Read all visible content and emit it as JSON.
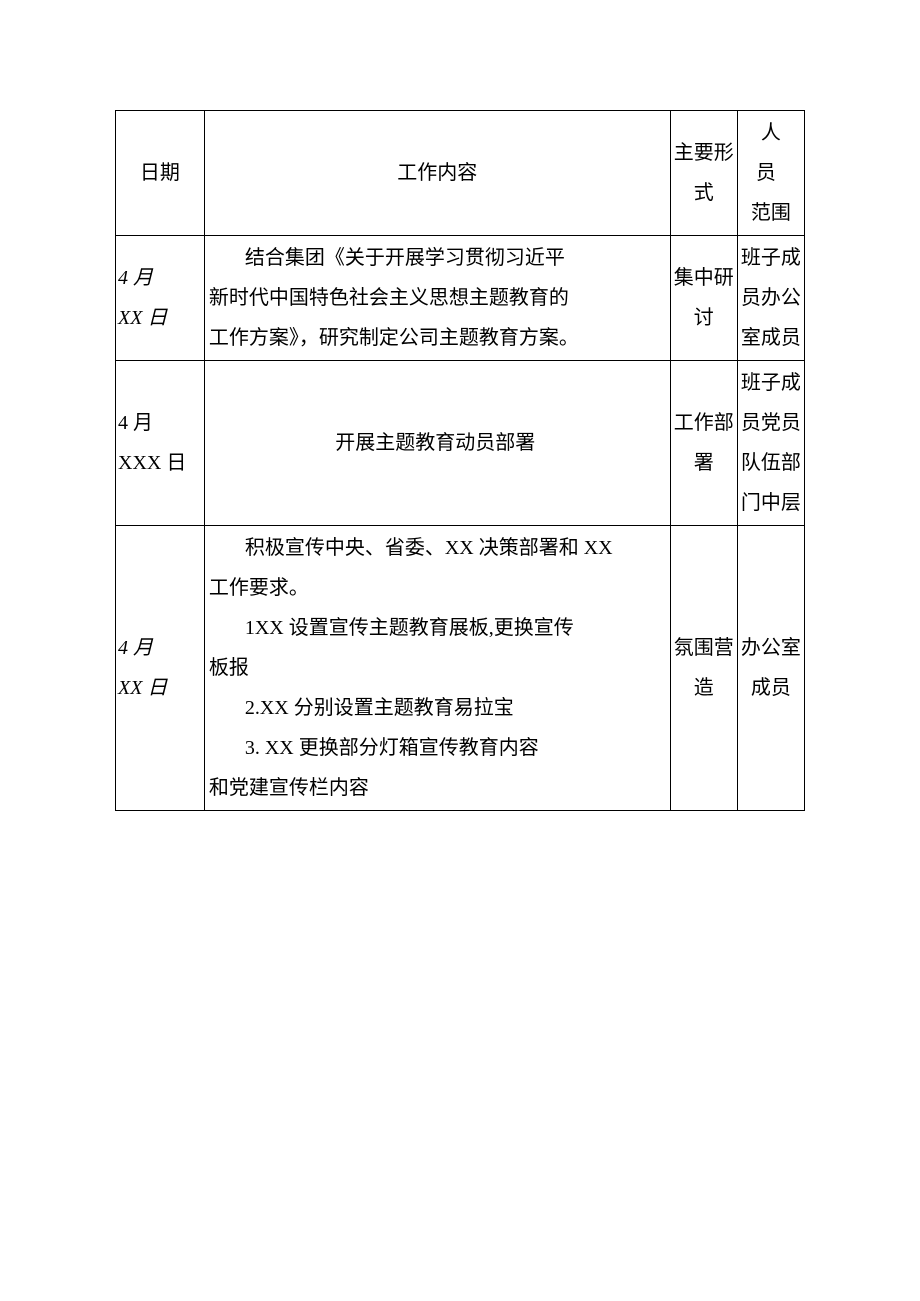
{
  "headers": {
    "date": "日期",
    "content": "工作内容",
    "form": "主要形式",
    "scope_l1": "人",
    "scope_l2": "员",
    "scope_l3": "范围"
  },
  "rows": [
    {
      "date_l1": "4 月",
      "date_l2": "XX 日",
      "date_italic": true,
      "content_lines": [
        {
          "text": "结合集团《关于开展学习贯彻习近平",
          "indent": true
        },
        {
          "text": "新时代中国特色社会主义思想主题教育的",
          "indent": false
        },
        {
          "text": "工作方案》，研究制定公司主题教育方案。",
          "indent": false
        }
      ],
      "form": "集中研讨",
      "scope": "班子成员办公室成员"
    },
    {
      "date_l1": "4 月",
      "date_l2": "XXX 日",
      "date_italic": false,
      "content_lines": [
        {
          "text": "开展主题教育动员部署",
          "indent": true
        }
      ],
      "content_center": true,
      "form": "工作部署",
      "scope": "班子成员党员队伍部门中层"
    },
    {
      "date_l1": "4 月",
      "date_l2": "XX 日",
      "date_italic": true,
      "content_lines": [
        {
          "text": "积极宣传中央、省委、XX 决策部署和 XX",
          "indent": true
        },
        {
          "text": "工作要求。",
          "indent": false
        },
        {
          "text": "1XX 设置宣传主题教育展板,更换宣传",
          "indent": true
        },
        {
          "text": "板报",
          "indent": false
        },
        {
          "text": "2.XX 分别设置主题教育易拉宝",
          "indent": true
        },
        {
          "text": "3.   XX 更换部分灯箱宣传教育内容",
          "indent": true
        },
        {
          "text": "和党建宣传栏内容",
          "indent": false
        }
      ],
      "form": "氛围营造",
      "scope": "办公室成员"
    }
  ]
}
